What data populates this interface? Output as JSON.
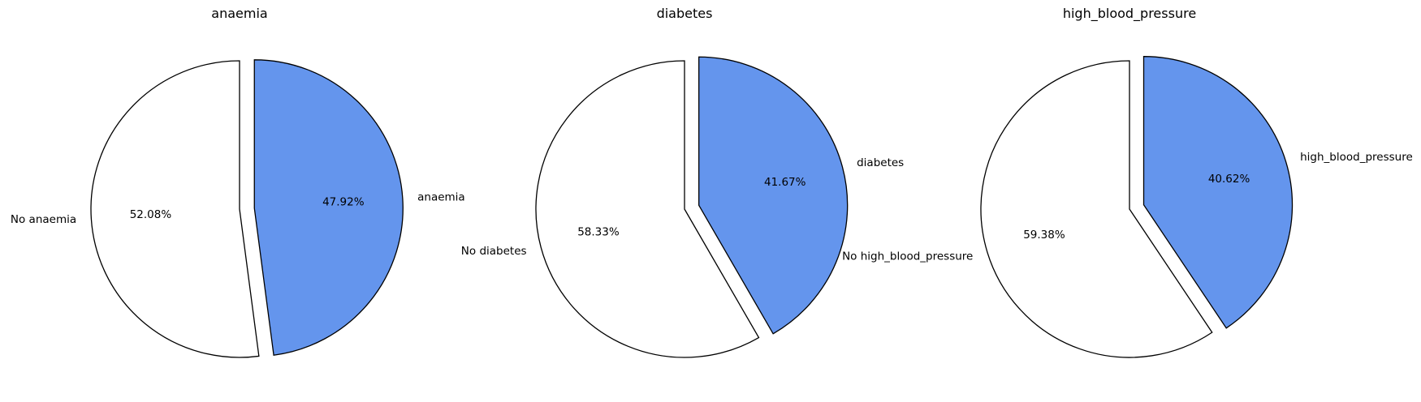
{
  "chart_data": [
    {
      "type": "pie",
      "title": "anaemia",
      "slices": [
        {
          "label": "anaemia",
          "value": 47.92,
          "pct_label": "47.92%",
          "color": "#6495ed",
          "exploded": true
        },
        {
          "label": "No anaemia",
          "value": 52.08,
          "pct_label": "52.08%",
          "color": "#ffffff",
          "exploded": false
        }
      ],
      "start_angle": 90,
      "counterclock": false,
      "edge_color": "#000000"
    },
    {
      "type": "pie",
      "title": "diabetes",
      "slices": [
        {
          "label": "diabetes",
          "value": 41.67,
          "pct_label": "41.67%",
          "color": "#6495ed",
          "exploded": true
        },
        {
          "label": "No diabetes",
          "value": 58.33,
          "pct_label": "58.33%",
          "color": "#ffffff",
          "exploded": false
        }
      ],
      "start_angle": 90,
      "counterclock": false,
      "edge_color": "#000000"
    },
    {
      "type": "pie",
      "title": "high_blood_pressure",
      "slices": [
        {
          "label": "high_blood_pressure",
          "value": 40.62,
          "pct_label": "40.62%",
          "color": "#6495ed",
          "exploded": true
        },
        {
          "label": "No high_blood_pressure",
          "value": 59.38,
          "pct_label": "59.38%",
          "color": "#ffffff",
          "exploded": false
        }
      ],
      "start_angle": 90,
      "counterclock": false,
      "edge_color": "#000000"
    }
  ]
}
